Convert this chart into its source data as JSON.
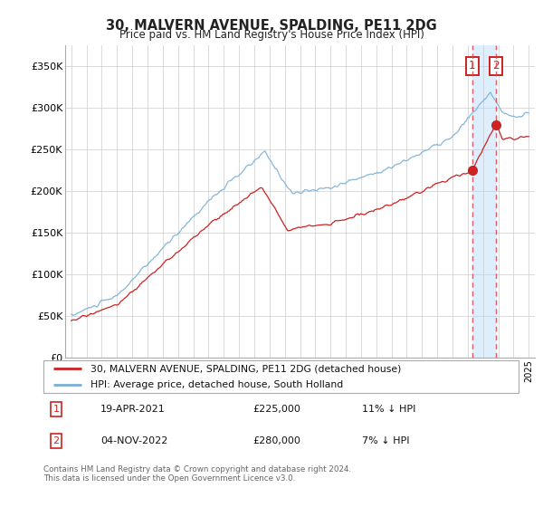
{
  "title": "30, MALVERN AVENUE, SPALDING, PE11 2DG",
  "subtitle": "Price paid vs. HM Land Registry's House Price Index (HPI)",
  "legend_line1": "30, MALVERN AVENUE, SPALDING, PE11 2DG (detached house)",
  "legend_line2": "HPI: Average price, detached house, South Holland",
  "footnote": "Contains HM Land Registry data © Crown copyright and database right 2024.\nThis data is licensed under the Open Government Licence v3.0.",
  "sale1_date": "19-APR-2021",
  "sale1_price": "£225,000",
  "sale1_hpi": "11% ↓ HPI",
  "sale2_date": "04-NOV-2022",
  "sale2_price": "£280,000",
  "sale2_hpi": "7% ↓ HPI",
  "hpi_color": "#7aafd4",
  "price_color": "#cc2222",
  "marker_color": "#cc2222",
  "dashed_color": "#dd4444",
  "shade_color": "#ddeeff",
  "annotation_box_color": "#cc2222",
  "background_color": "#ffffff",
  "grid_color": "#cccccc",
  "ylim": [
    0,
    375000
  ],
  "yticks": [
    0,
    50000,
    100000,
    150000,
    200000,
    250000,
    300000,
    350000
  ],
  "ytick_labels": [
    "£0",
    "£50K",
    "£100K",
    "£150K",
    "£200K",
    "£250K",
    "£300K",
    "£350K"
  ],
  "sale1_year": 2021.29,
  "sale2_year": 2022.84,
  "sale1_price_val": 225000,
  "sale2_price_val": 280000
}
